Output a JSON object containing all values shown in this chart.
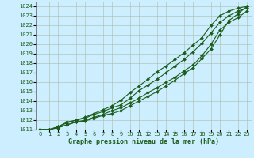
{
  "background_color": "#cceeff",
  "plot_bg_color": "#cceeff",
  "grid_color": "#aabbaa",
  "line_color": "#1a5c1a",
  "marker_color": "#1a5c1a",
  "xlabel": "Graphe pression niveau de la mer (hPa)",
  "ylim": [
    1011,
    1024.5
  ],
  "xlim": [
    -0.5,
    23.5
  ],
  "yticks": [
    1011,
    1012,
    1013,
    1014,
    1015,
    1016,
    1017,
    1018,
    1019,
    1020,
    1021,
    1022,
    1023,
    1024
  ],
  "xticks": [
    0,
    1,
    2,
    3,
    4,
    5,
    6,
    7,
    8,
    9,
    10,
    11,
    12,
    13,
    14,
    15,
    16,
    17,
    18,
    19,
    20,
    21,
    22,
    23
  ],
  "lines": [
    [
      1011.0,
      1011.0,
      1011.2,
      1011.5,
      1011.8,
      1011.9,
      1012.2,
      1012.5,
      1012.7,
      1013.0,
      1013.5,
      1014.0,
      1014.5,
      1015.0,
      1015.6,
      1016.2,
      1016.9,
      1017.5,
      1018.5,
      1019.5,
      1021.0,
      1022.5,
      1023.2,
      1024.0
    ],
    [
      1011.0,
      1011.0,
      1011.2,
      1011.5,
      1011.8,
      1012.0,
      1012.3,
      1012.6,
      1013.0,
      1013.3,
      1013.8,
      1014.3,
      1014.9,
      1015.4,
      1016.0,
      1016.5,
      1017.2,
      1017.8,
      1018.8,
      1020.0,
      1021.5,
      1022.3,
      1022.8,
      1023.5
    ],
    [
      1011.0,
      1011.0,
      1011.3,
      1011.7,
      1012.0,
      1012.2,
      1012.6,
      1012.9,
      1013.3,
      1013.6,
      1014.3,
      1015.1,
      1015.7,
      1016.3,
      1017.0,
      1017.7,
      1018.4,
      1019.2,
      1020.1,
      1021.2,
      1022.3,
      1023.0,
      1023.5,
      1023.8
    ],
    [
      1011.0,
      1011.0,
      1011.3,
      1011.8,
      1012.0,
      1012.3,
      1012.7,
      1013.1,
      1013.5,
      1014.1,
      1014.9,
      1015.6,
      1016.3,
      1017.1,
      1017.7,
      1018.4,
      1019.1,
      1019.9,
      1020.7,
      1022.0,
      1023.0,
      1023.5,
      1023.8,
      1024.0
    ]
  ],
  "marker": "D",
  "markersize": 2.0,
  "linewidth": 0.8,
  "tick_fontsize": 5.0,
  "label_fontsize": 6.0,
  "label_fontweight": "bold"
}
